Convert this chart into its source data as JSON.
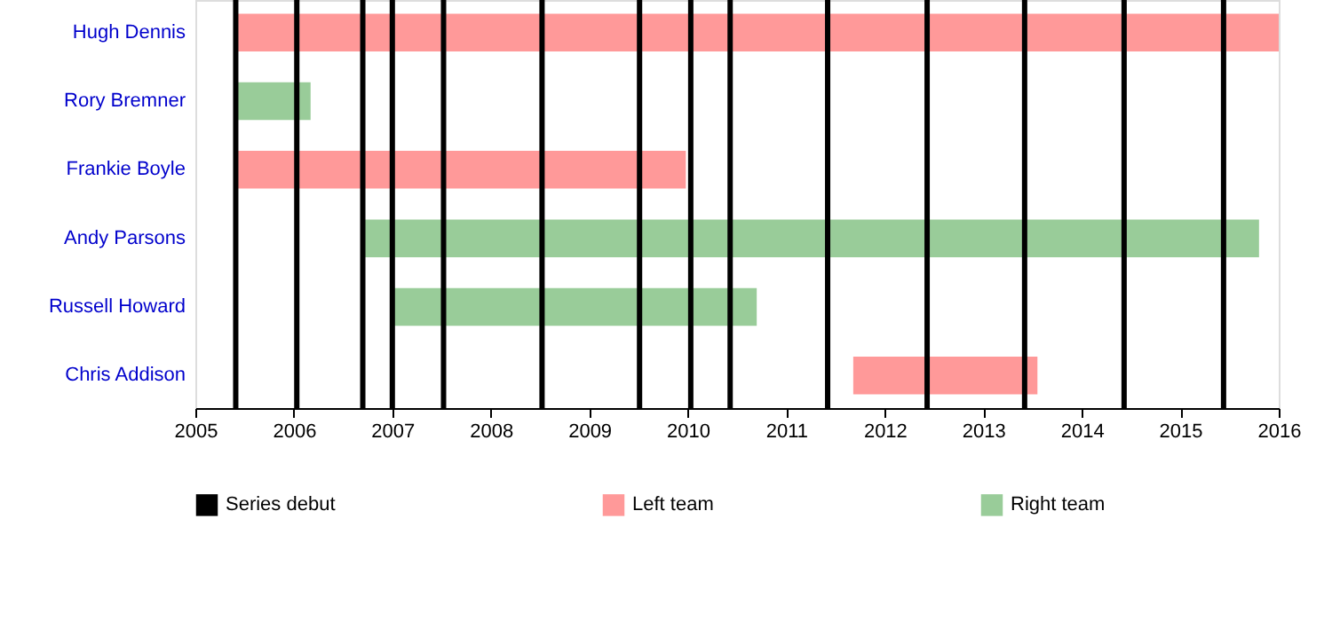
{
  "chart_data": {
    "type": "bar",
    "orientation": "horizontal",
    "categories": [
      "Hugh Dennis",
      "Rory Bremner",
      "Frankie Boyle",
      "Andy Parsons",
      "Russell Howard",
      "Chris Addison"
    ],
    "series": [
      {
        "name": "Left team",
        "color": "#ff9999",
        "base": [
          2005.41,
          null,
          2005.41,
          null,
          null,
          2011.68
        ],
        "values": [
          10.59,
          null,
          4.57,
          null,
          null,
          1.87
        ]
      },
      {
        "name": "Right team",
        "color": "#99cc99",
        "base": [
          null,
          2005.41,
          null,
          2006.7,
          2007.0,
          null
        ],
        "values": [
          null,
          0.76,
          null,
          9.1,
          3.7,
          null
        ]
      }
    ],
    "ref_lines": [
      {
        "axis": "x",
        "value": 2005.41,
        "label": "Series debut",
        "color": "#000000"
      },
      {
        "axis": "x",
        "value": 2006.03,
        "color": "#000000"
      },
      {
        "axis": "x",
        "value": 2006.7,
        "color": "#000000"
      },
      {
        "axis": "x",
        "value": 2007.0,
        "color": "#000000"
      },
      {
        "axis": "x",
        "value": 2007.52,
        "color": "#000000"
      },
      {
        "axis": "x",
        "value": 2008.52,
        "color": "#000000"
      },
      {
        "axis": "x",
        "value": 2009.51,
        "color": "#000000"
      },
      {
        "axis": "x",
        "value": 2010.03,
        "color": "#000000"
      },
      {
        "axis": "x",
        "value": 2010.43,
        "color": "#000000"
      },
      {
        "axis": "x",
        "value": 2011.42,
        "color": "#000000"
      },
      {
        "axis": "x",
        "value": 2012.43,
        "color": "#000000"
      },
      {
        "axis": "x",
        "value": 2013.42,
        "color": "#000000"
      },
      {
        "axis": "x",
        "value": 2014.43,
        "color": "#000000"
      },
      {
        "axis": "x",
        "value": 2015.44,
        "color": "#000000"
      }
    ],
    "xlim": [
      2005,
      2016
    ],
    "xticks": [
      2005,
      2006,
      2007,
      2008,
      2009,
      2010,
      2011,
      2012,
      2013,
      2014,
      2015,
      2016
    ],
    "grid": false,
    "legend": "bottom"
  }
}
